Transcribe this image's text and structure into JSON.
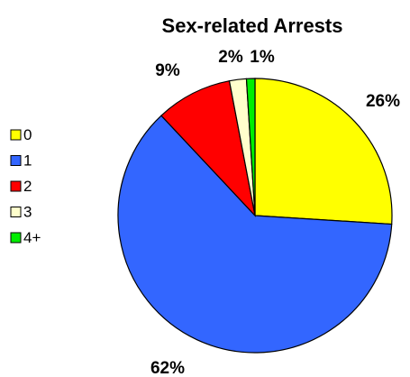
{
  "chart_data": {
    "type": "pie",
    "title": "Sex-related Arrests",
    "categories": [
      "0",
      "1",
      "2",
      "3",
      "4+"
    ],
    "values": [
      26,
      62,
      9,
      2,
      1
    ],
    "data_labels": [
      "26%",
      "62%",
      "9%",
      "2%",
      "1%"
    ],
    "colors": [
      "#ffff00",
      "#3366ff",
      "#ff0000",
      "#ffffcc",
      "#00ee00"
    ],
    "legend_placement": "left",
    "start_angle_deg": 0,
    "direction": "clockwise",
    "border_color": "#000000"
  }
}
